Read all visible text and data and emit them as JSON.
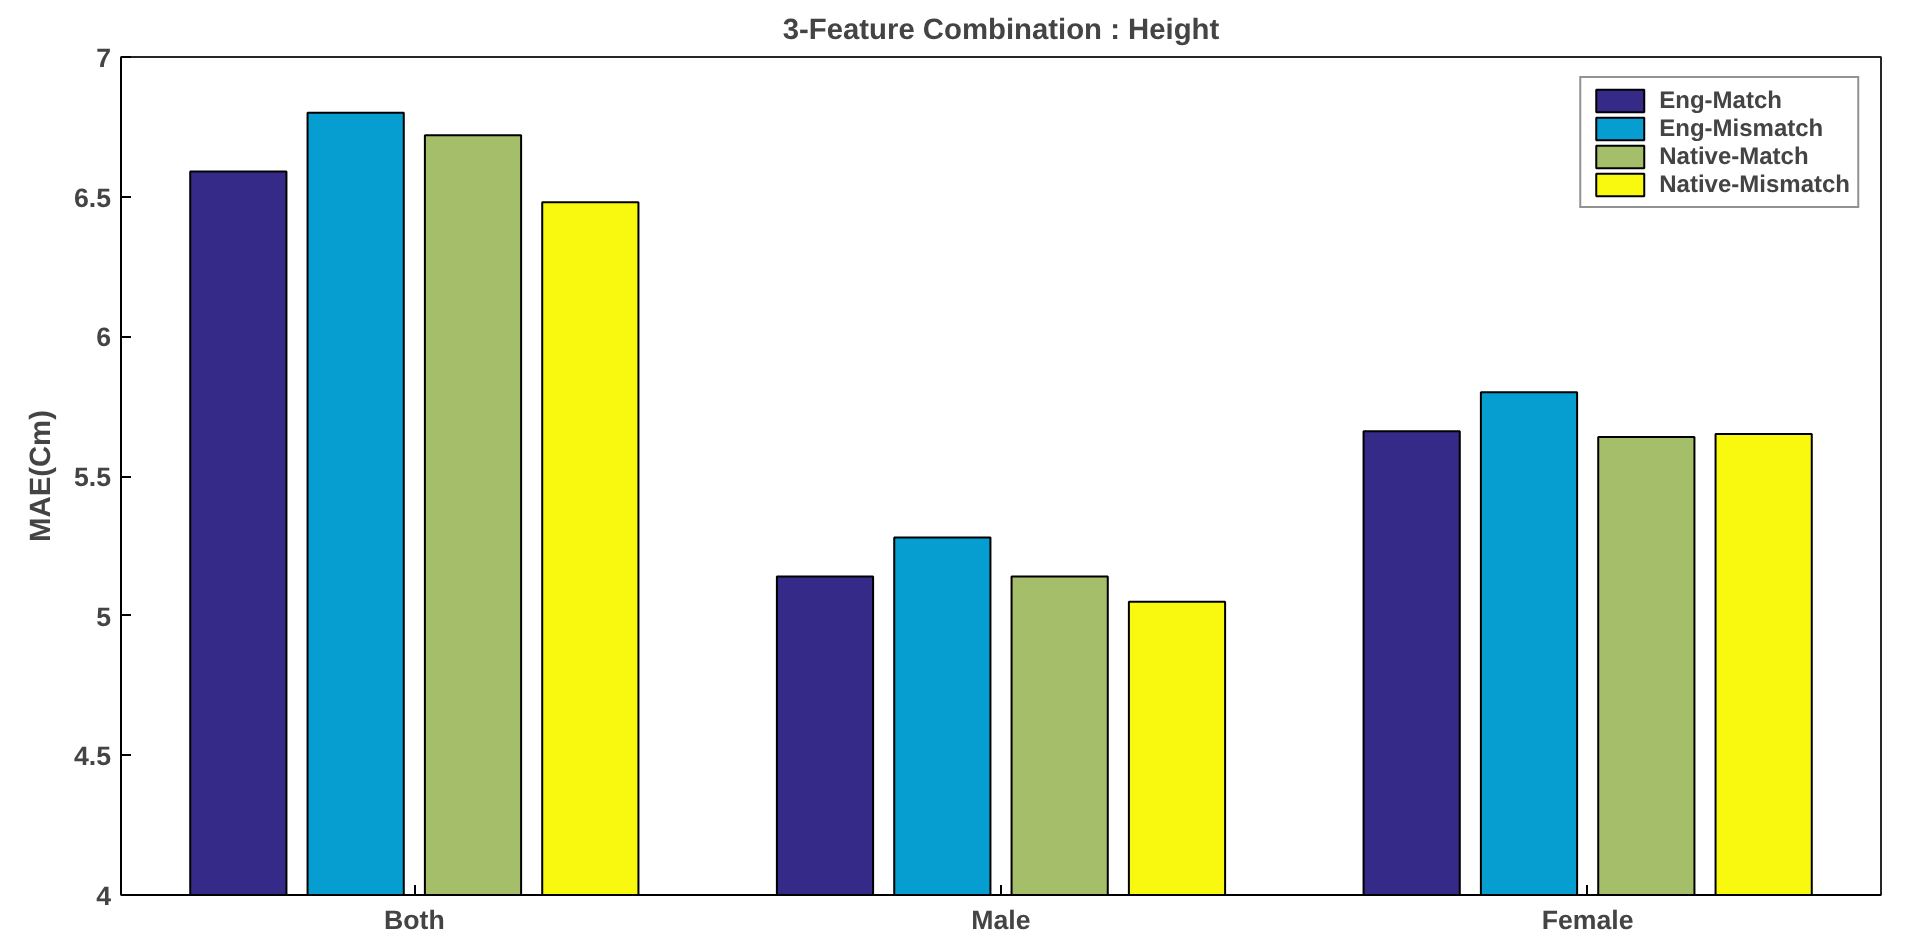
{
  "chart_data": {
    "type": "bar",
    "title": "3-Feature Combination : Height",
    "ylabel": "MAE(Cm)",
    "categories": [
      "Both",
      "Male",
      "Female"
    ],
    "series": [
      {
        "name": "Eng-Match",
        "color": "#352a87",
        "values": [
          6.59,
          5.14,
          5.66
        ]
      },
      {
        "name": "Eng-Mismatch",
        "color": "#069dd0",
        "values": [
          6.8,
          5.28,
          5.8
        ]
      },
      {
        "name": "Native-Match",
        "color": "#a5be6a",
        "values": [
          6.72,
          5.14,
          5.64
        ]
      },
      {
        "name": "Native-Mismatch",
        "color": "#f8f90f",
        "values": [
          6.48,
          5.05,
          5.65
        ]
      }
    ],
    "ylim": [
      4,
      7
    ],
    "yticks": [
      4,
      4.5,
      5,
      5.5,
      6,
      6.5,
      7
    ],
    "grid": false,
    "legend": "top right"
  }
}
